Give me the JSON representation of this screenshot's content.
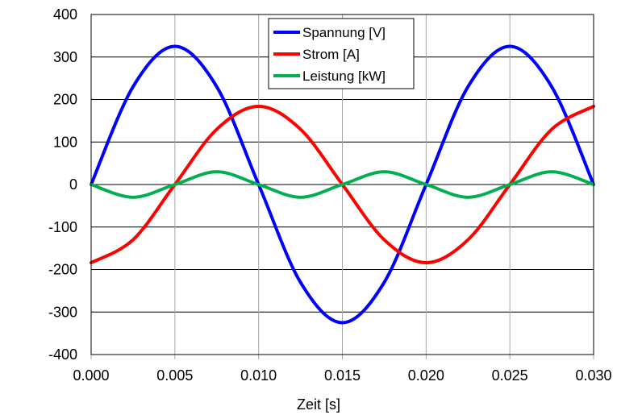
{
  "chart_data": {
    "type": "line",
    "xlabel": "Zeit [s]",
    "ylabel": "",
    "xlim": [
      0,
      0.03
    ],
    "ylim": [
      -400,
      400
    ],
    "x_ticks": [
      "0.000",
      "0.005",
      "0.010",
      "0.015",
      "0.020",
      "0.025",
      "0.030"
    ],
    "y_ticks": [
      "400",
      "300",
      "200",
      "100",
      "0",
      "-100",
      "-200",
      "-300",
      "-400"
    ],
    "grid": true,
    "legend_position": "top-center",
    "series": [
      {
        "name": "Spannung [V]",
        "color": "#0000ff",
        "x": [
          0.0,
          0.0025,
          0.005,
          0.0075,
          0.01,
          0.0125,
          0.015,
          0.0175,
          0.02,
          0.0225,
          0.025,
          0.0275,
          0.03
        ],
        "values": [
          0,
          230,
          325,
          230,
          0,
          -230,
          -325,
          -230,
          0,
          230,
          325,
          230,
          0
        ]
      },
      {
        "name": "Strom [A]",
        "color": "#ff0000",
        "x": [
          0.0,
          0.0025,
          0.005,
          0.0075,
          0.01,
          0.0125,
          0.015,
          0.0175,
          0.02,
          0.0225,
          0.025,
          0.0275,
          0.03
        ],
        "values": [
          -184,
          -130,
          0,
          130,
          184,
          130,
          0,
          -130,
          -184,
          -130,
          0,
          130,
          184
        ]
      },
      {
        "name": "Leistung [kW]",
        "color": "#00b050",
        "x": [
          0.0,
          0.0025,
          0.005,
          0.0075,
          0.01,
          0.0125,
          0.015,
          0.0175,
          0.02,
          0.0225,
          0.025,
          0.0275,
          0.03
        ],
        "values": [
          0,
          -30,
          0,
          30,
          0,
          -30,
          0,
          30,
          0,
          -30,
          0,
          30,
          0
        ]
      }
    ]
  }
}
